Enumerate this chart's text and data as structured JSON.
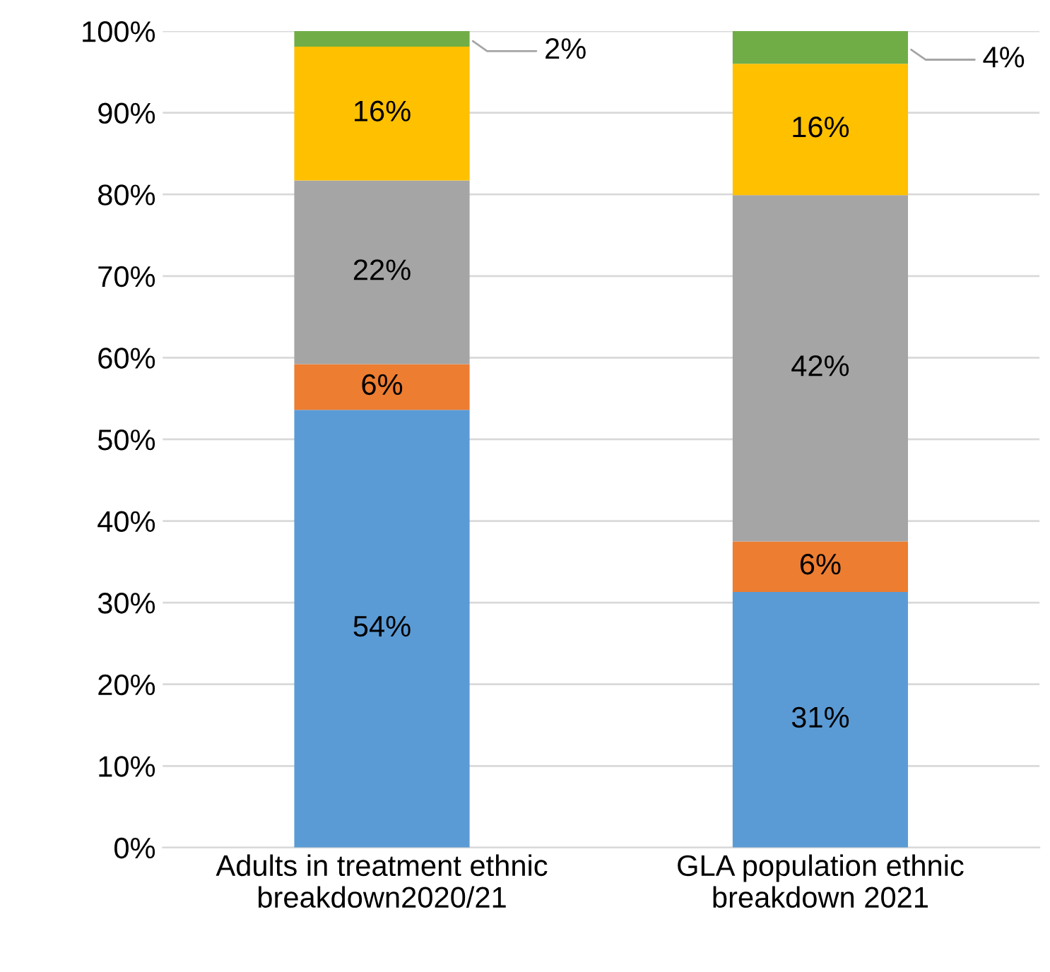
{
  "chart_data": {
    "type": "bar",
    "stacked": true,
    "categories": [
      "Adults in treatment ethnic\nbreakdown2020/21",
      "GLA population ethnic\nbreakdown 2021"
    ],
    "series": [
      {
        "color": "#5b9bd5",
        "values": [
          53.6,
          31.3
        ],
        "value_labels": [
          "54%",
          "31%"
        ]
      },
      {
        "color": "#ed7d31",
        "values": [
          5.6,
          6.2
        ],
        "value_labels": [
          "6%",
          "6%"
        ]
      },
      {
        "color": "#a5a5a5",
        "values": [
          22.5,
          42.4
        ],
        "value_labels": [
          "22%",
          "42%"
        ]
      },
      {
        "color": "#ffc000",
        "values": [
          16.4,
          16.1
        ],
        "value_labels": [
          "16%",
          "16%"
        ]
      },
      {
        "color": "#70ad47",
        "values": [
          1.9,
          4.0
        ],
        "value_labels": [
          "2%",
          "4%"
        ]
      }
    ],
    "ylim": [
      0,
      100
    ],
    "yticks": [
      {
        "value": 0,
        "label": "0%"
      },
      {
        "value": 10,
        "label": "10%"
      },
      {
        "value": 20,
        "label": "20%"
      },
      {
        "value": 30,
        "label": "30%"
      },
      {
        "value": 40,
        "label": "40%"
      },
      {
        "value": 50,
        "label": "50%"
      },
      {
        "value": 60,
        "label": "60%"
      },
      {
        "value": 70,
        "label": "70%"
      },
      {
        "value": 80,
        "label": "80%"
      },
      {
        "value": 90,
        "label": "90%"
      },
      {
        "value": 100,
        "label": "100%"
      }
    ],
    "grid": "y",
    "legend": false
  }
}
